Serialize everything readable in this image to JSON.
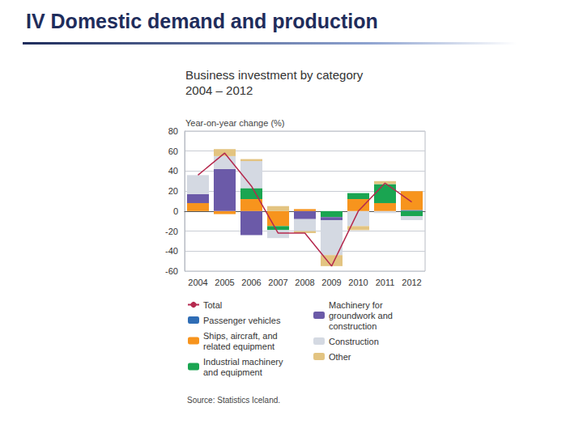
{
  "slide_title": "IV Domestic demand and production",
  "chart_data": {
    "type": "bar",
    "title": "Business investment by category",
    "subtitle": "2004 – 2012",
    "y_label": "Year-on-year change (%)",
    "source": "Source: Statistics Iceland.",
    "stacked": true,
    "grid": true,
    "legend": "bottom",
    "categories": [
      "2004",
      "2005",
      "2006",
      "2007",
      "2008",
      "2009",
      "2010",
      "2011",
      "2012"
    ],
    "ylim": [
      -60,
      80
    ],
    "yticks": [
      -60,
      -40,
      -20,
      0,
      20,
      40,
      60,
      80
    ],
    "series": [
      {
        "name": "Total",
        "type": "line",
        "marker": "none",
        "color": "#b5294e",
        "values": [
          36,
          58,
          25,
          -22,
          -22,
          -55,
          0,
          28,
          9
        ]
      },
      {
        "name": "Passenger vehicles",
        "color": "#2f6db5",
        "values": [
          0,
          0,
          0,
          0,
          0,
          0,
          0,
          0,
          1
        ]
      },
      {
        "name": "Ships, aircraft, and related equipment",
        "color": "#f7941d",
        "values": [
          8,
          -3,
          12,
          -15,
          2,
          0,
          12,
          8,
          19
        ]
      },
      {
        "name": "Industrial machinery and equipment",
        "color": "#1aa551",
        "values": [
          0,
          0,
          11,
          -4,
          0,
          -6,
          6,
          19,
          -5
        ]
      },
      {
        "name": "Machinery for groundwork and construction",
        "color": "#6b5aa8",
        "values": [
          9,
          42,
          -24,
          0,
          -8,
          -3,
          0,
          0,
          0
        ]
      },
      {
        "name": "Construction",
        "color": "#d4d9e2",
        "values": [
          19,
          13,
          27,
          -8,
          -12,
          -35,
          -15,
          -2,
          -4
        ]
      },
      {
        "name": "Other",
        "color": "#e3c481",
        "values": [
          0,
          7,
          2,
          5,
          -2,
          -11,
          -4,
          3,
          0
        ]
      }
    ]
  }
}
